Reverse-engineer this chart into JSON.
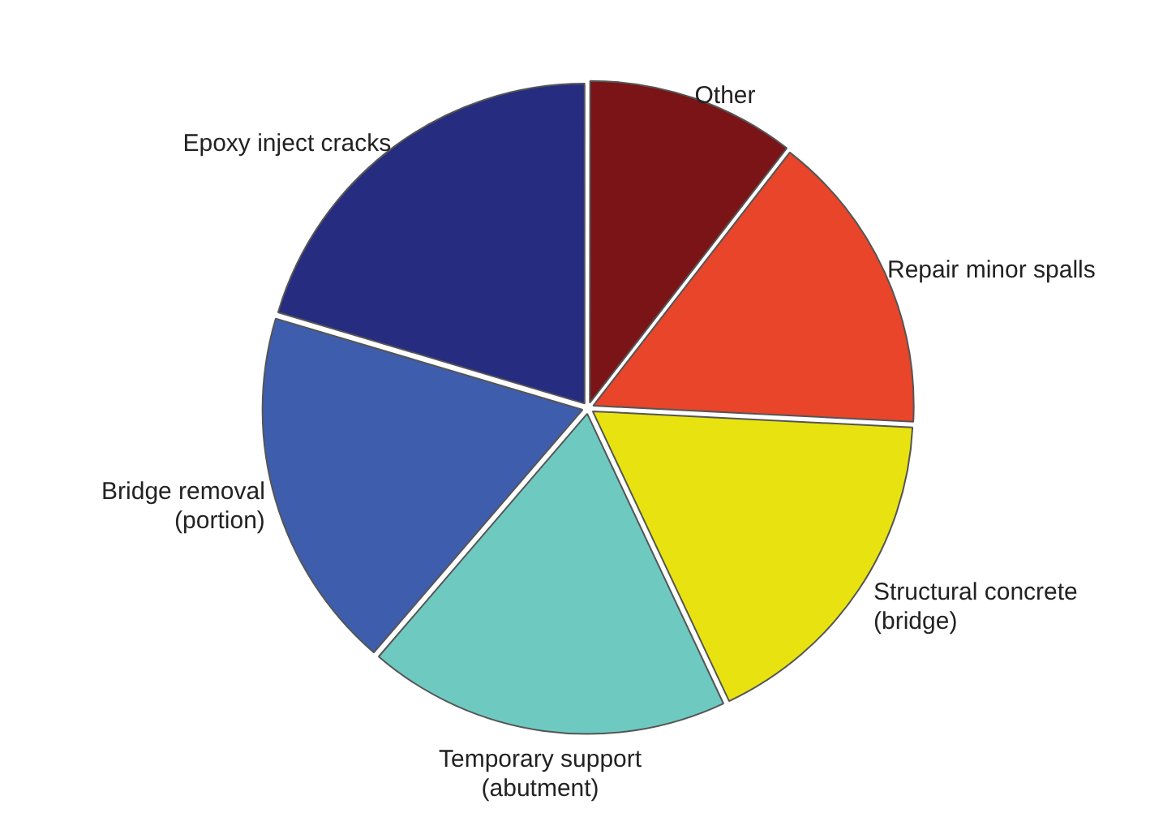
{
  "chart_data": {
    "type": "pie",
    "categories": [
      "Other",
      "Repair minor spalls",
      "Structural concrete (bridge)",
      "Temporary support (abutment)",
      "Bridge removal (portion)",
      "Epoxy inject cracks"
    ],
    "values": [
      10.5,
      15.3,
      17.2,
      18.3,
      18.3,
      20.4
    ],
    "colors": [
      "#7a1416",
      "#e8452a",
      "#e8e310",
      "#6ecac0",
      "#3e5ead",
      "#262c80"
    ],
    "legend": false
  }
}
